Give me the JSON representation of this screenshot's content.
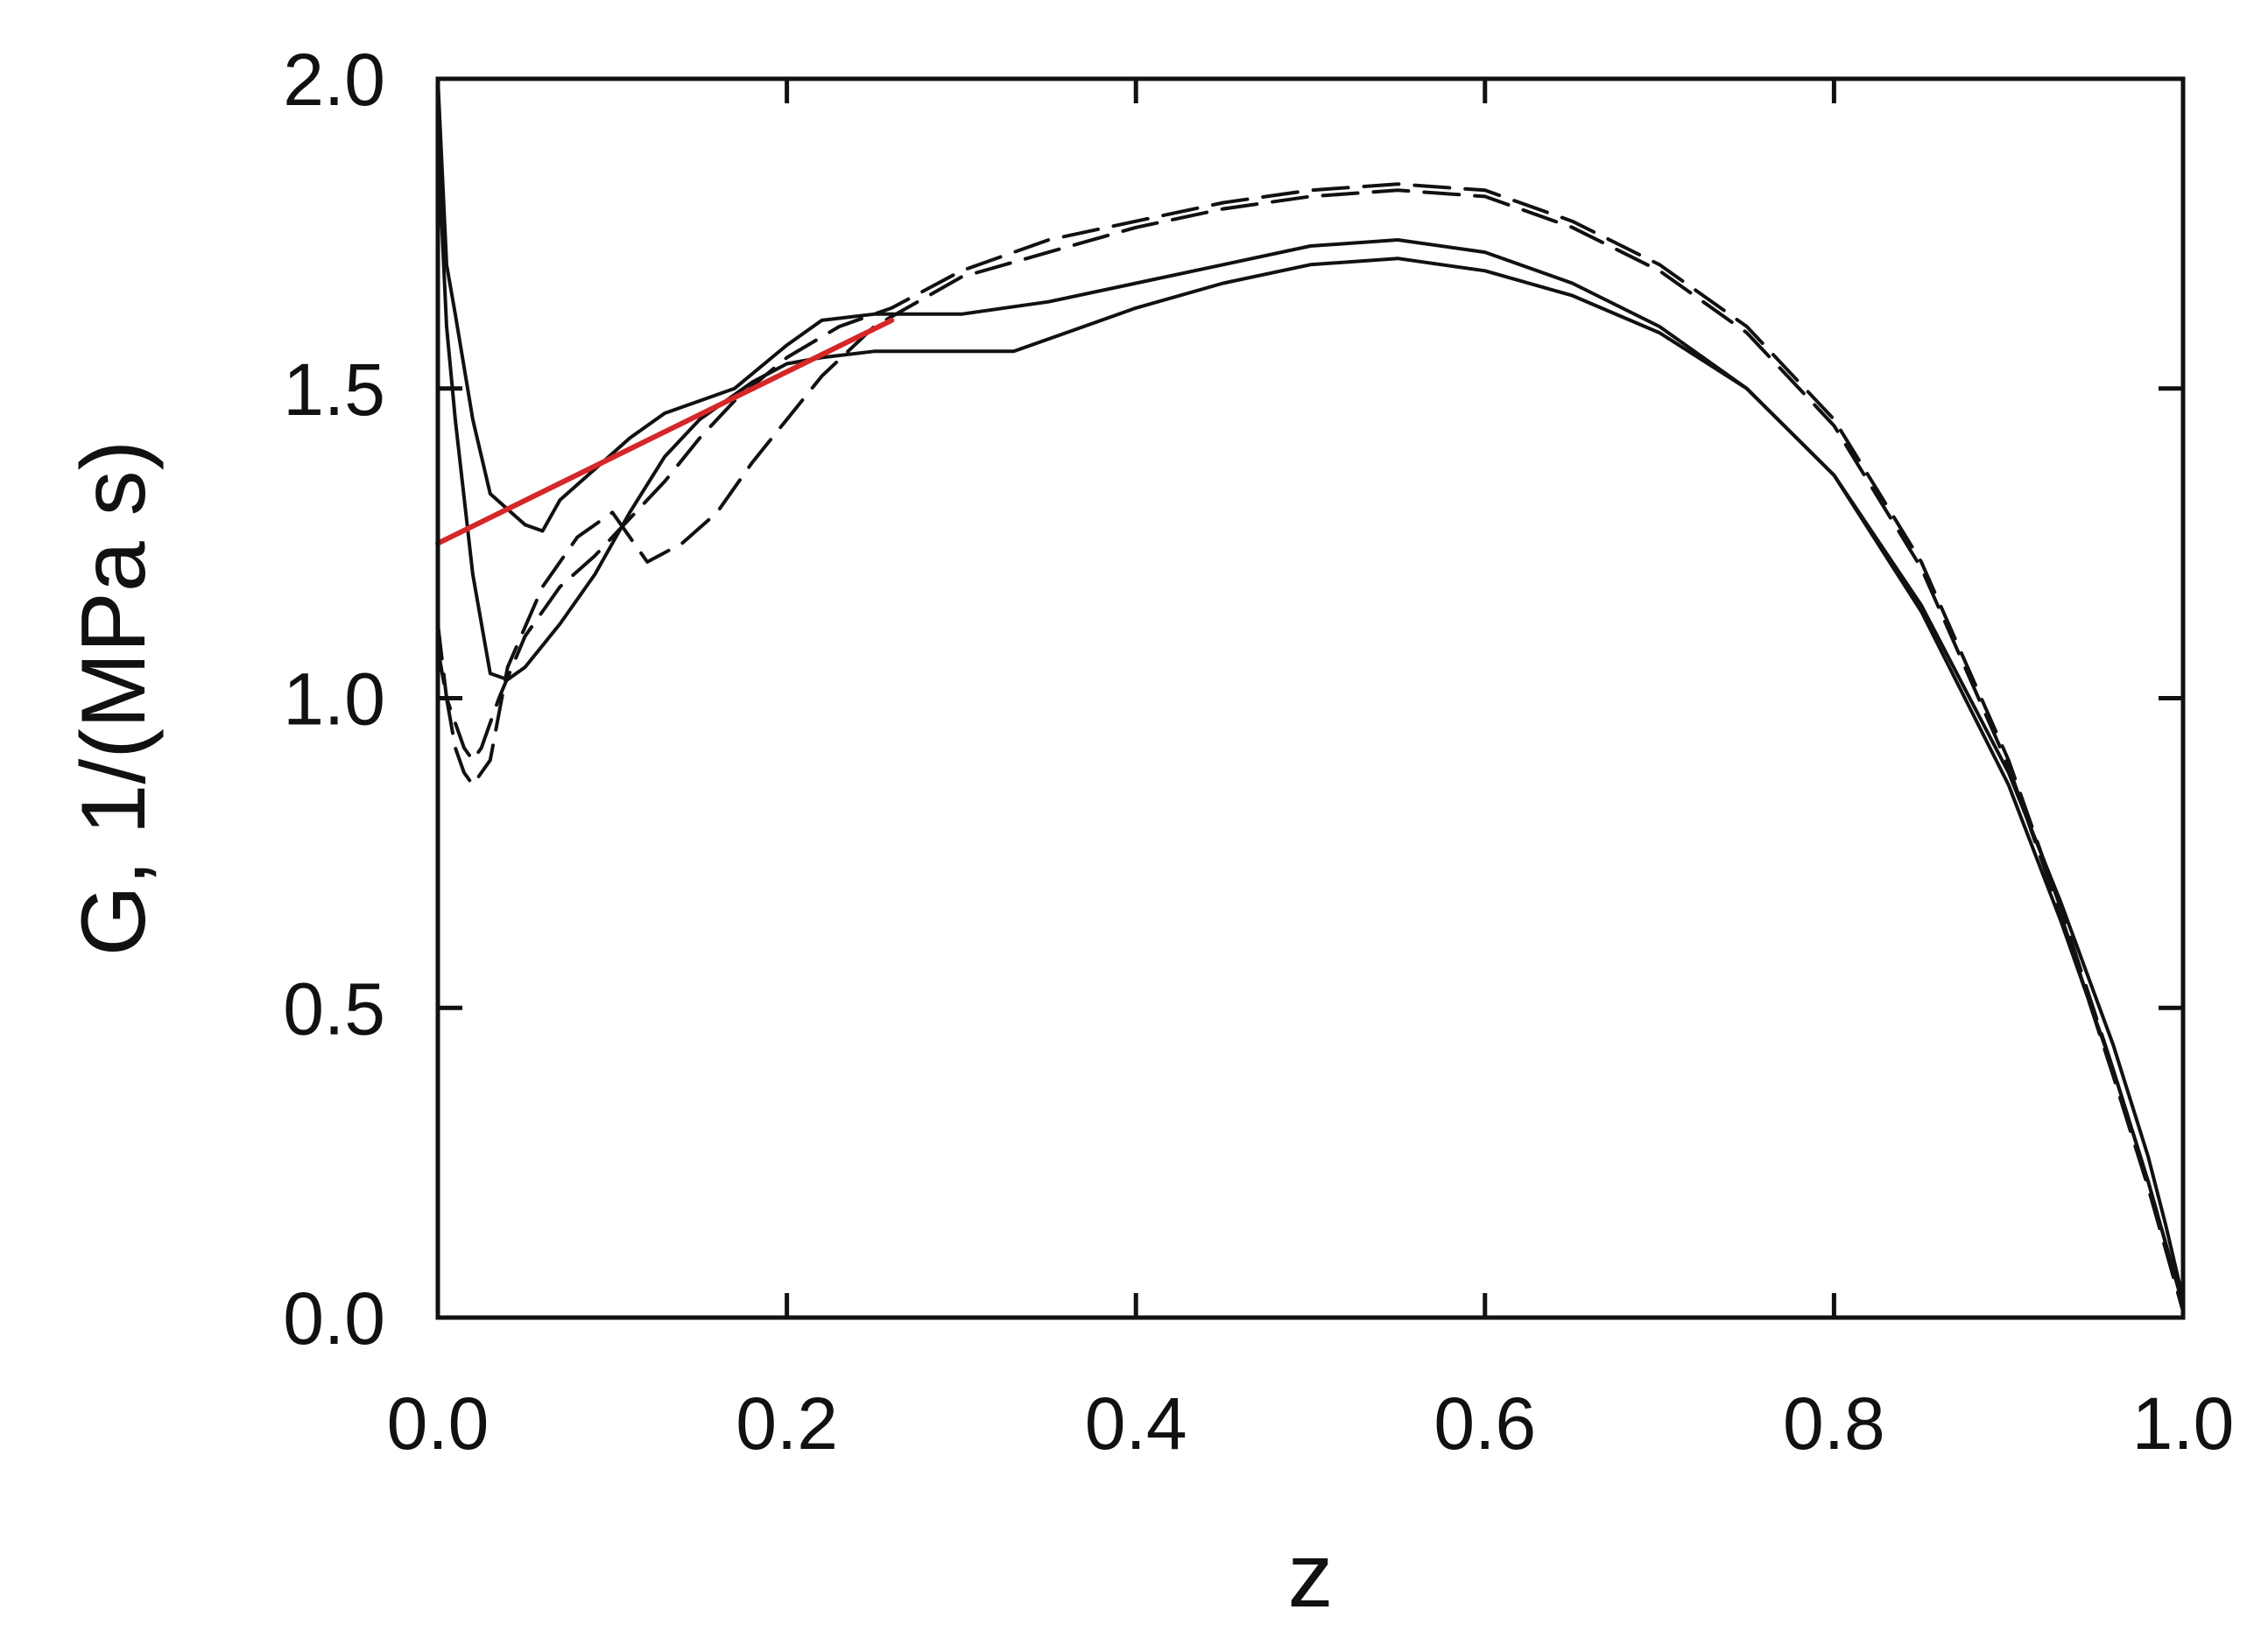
{
  "chart_data": {
    "type": "line",
    "title": "",
    "xlabel": "z",
    "ylabel": "G, 1/(MPa s)",
    "xlim": [
      0,
      1
    ],
    "ylim": [
      0,
      2
    ],
    "grid": false,
    "legend": "none",
    "x_ticks": [
      0.0,
      0.2,
      0.4,
      0.6,
      0.8,
      1.0
    ],
    "x_tick_labels": [
      "0.0",
      "0.2",
      "0.4",
      "0.6",
      "0.8",
      "1.0"
    ],
    "y_ticks": [
      0.0,
      0.5,
      1.0,
      1.5,
      2.0
    ],
    "y_tick_labels": [
      "0.0",
      "0.5",
      "1.0",
      "1.5",
      "2.0"
    ],
    "series": [
      {
        "style": "solid",
        "color": "#111111",
        "x": [
          0.0,
          0.005,
          0.01,
          0.02,
          0.03,
          0.05,
          0.06,
          0.07,
          0.09,
          0.11,
          0.13,
          0.15,
          0.17,
          0.2,
          0.22,
          0.25,
          0.3,
          0.35,
          0.4,
          0.45,
          0.5,
          0.55,
          0.6,
          0.65,
          0.7,
          0.75,
          0.8,
          0.85,
          0.9,
          0.93,
          0.96,
          0.98,
          0.99,
          1.0
        ],
        "y": [
          2.0,
          1.7,
          1.62,
          1.45,
          1.33,
          1.28,
          1.27,
          1.32,
          1.37,
          1.42,
          1.46,
          1.48,
          1.5,
          1.57,
          1.61,
          1.62,
          1.62,
          1.64,
          1.67,
          1.7,
          1.73,
          1.74,
          1.72,
          1.67,
          1.6,
          1.5,
          1.36,
          1.14,
          0.86,
          0.64,
          0.4,
          0.22,
          0.12,
          0.02
        ]
      },
      {
        "style": "solid",
        "color": "#111111",
        "x": [
          0.0,
          0.005,
          0.01,
          0.02,
          0.03,
          0.04,
          0.05,
          0.07,
          0.09,
          0.11,
          0.13,
          0.15,
          0.18,
          0.2,
          0.22,
          0.25,
          0.3,
          0.33,
          0.36,
          0.4,
          0.45,
          0.5,
          0.55,
          0.6,
          0.65,
          0.7,
          0.75,
          0.8,
          0.85,
          0.9,
          0.93,
          0.96,
          0.98,
          0.99,
          1.0
        ],
        "y": [
          1.9,
          1.6,
          1.45,
          1.2,
          1.04,
          1.03,
          1.05,
          1.12,
          1.2,
          1.3,
          1.39,
          1.45,
          1.51,
          1.54,
          1.55,
          1.56,
          1.56,
          1.56,
          1.59,
          1.63,
          1.67,
          1.7,
          1.71,
          1.69,
          1.65,
          1.59,
          1.5,
          1.36,
          1.15,
          0.88,
          0.67,
          0.44,
          0.26,
          0.15,
          0.03
        ]
      },
      {
        "style": "dashed",
        "color": "#111111",
        "x": [
          0.0,
          0.005,
          0.01,
          0.015,
          0.02,
          0.025,
          0.035,
          0.05,
          0.07,
          0.09,
          0.11,
          0.13,
          0.15,
          0.17,
          0.2,
          0.23,
          0.26,
          0.3,
          0.35,
          0.4,
          0.45,
          0.5,
          0.55,
          0.6,
          0.65,
          0.7,
          0.75,
          0.8,
          0.85,
          0.9,
          0.93,
          0.96,
          0.98,
          0.99,
          1.0
        ],
        "y": [
          1.12,
          1.0,
          0.96,
          0.92,
          0.9,
          0.92,
          1.0,
          1.1,
          1.18,
          1.23,
          1.29,
          1.35,
          1.42,
          1.48,
          1.55,
          1.6,
          1.63,
          1.69,
          1.74,
          1.77,
          1.8,
          1.82,
          1.83,
          1.82,
          1.77,
          1.7,
          1.6,
          1.45,
          1.22,
          0.9,
          0.66,
          0.4,
          0.22,
          0.12,
          0.02
        ]
      },
      {
        "style": "dashed",
        "color": "#111111",
        "x": [
          0.0,
          0.005,
          0.01,
          0.015,
          0.02,
          0.03,
          0.04,
          0.06,
          0.08,
          0.1,
          0.12,
          0.14,
          0.16,
          0.18,
          0.2,
          0.22,
          0.25,
          0.3,
          0.35,
          0.4,
          0.45,
          0.5,
          0.55,
          0.6,
          0.65,
          0.7,
          0.75,
          0.8,
          0.85,
          0.9,
          0.93,
          0.96,
          0.98,
          0.99,
          1.0
        ],
        "y": [
          1.08,
          1.0,
          0.92,
          0.88,
          0.86,
          0.9,
          1.05,
          1.18,
          1.26,
          1.3,
          1.22,
          1.25,
          1.3,
          1.38,
          1.45,
          1.52,
          1.6,
          1.68,
          1.72,
          1.76,
          1.79,
          1.81,
          1.82,
          1.81,
          1.76,
          1.69,
          1.59,
          1.44,
          1.21,
          0.89,
          0.65,
          0.39,
          0.21,
          0.11,
          0.01
        ]
      },
      {
        "style": "solid",
        "color": "#d62728",
        "x": [
          0.0,
          0.26
        ],
        "y": [
          1.25,
          1.61
        ]
      }
    ]
  }
}
